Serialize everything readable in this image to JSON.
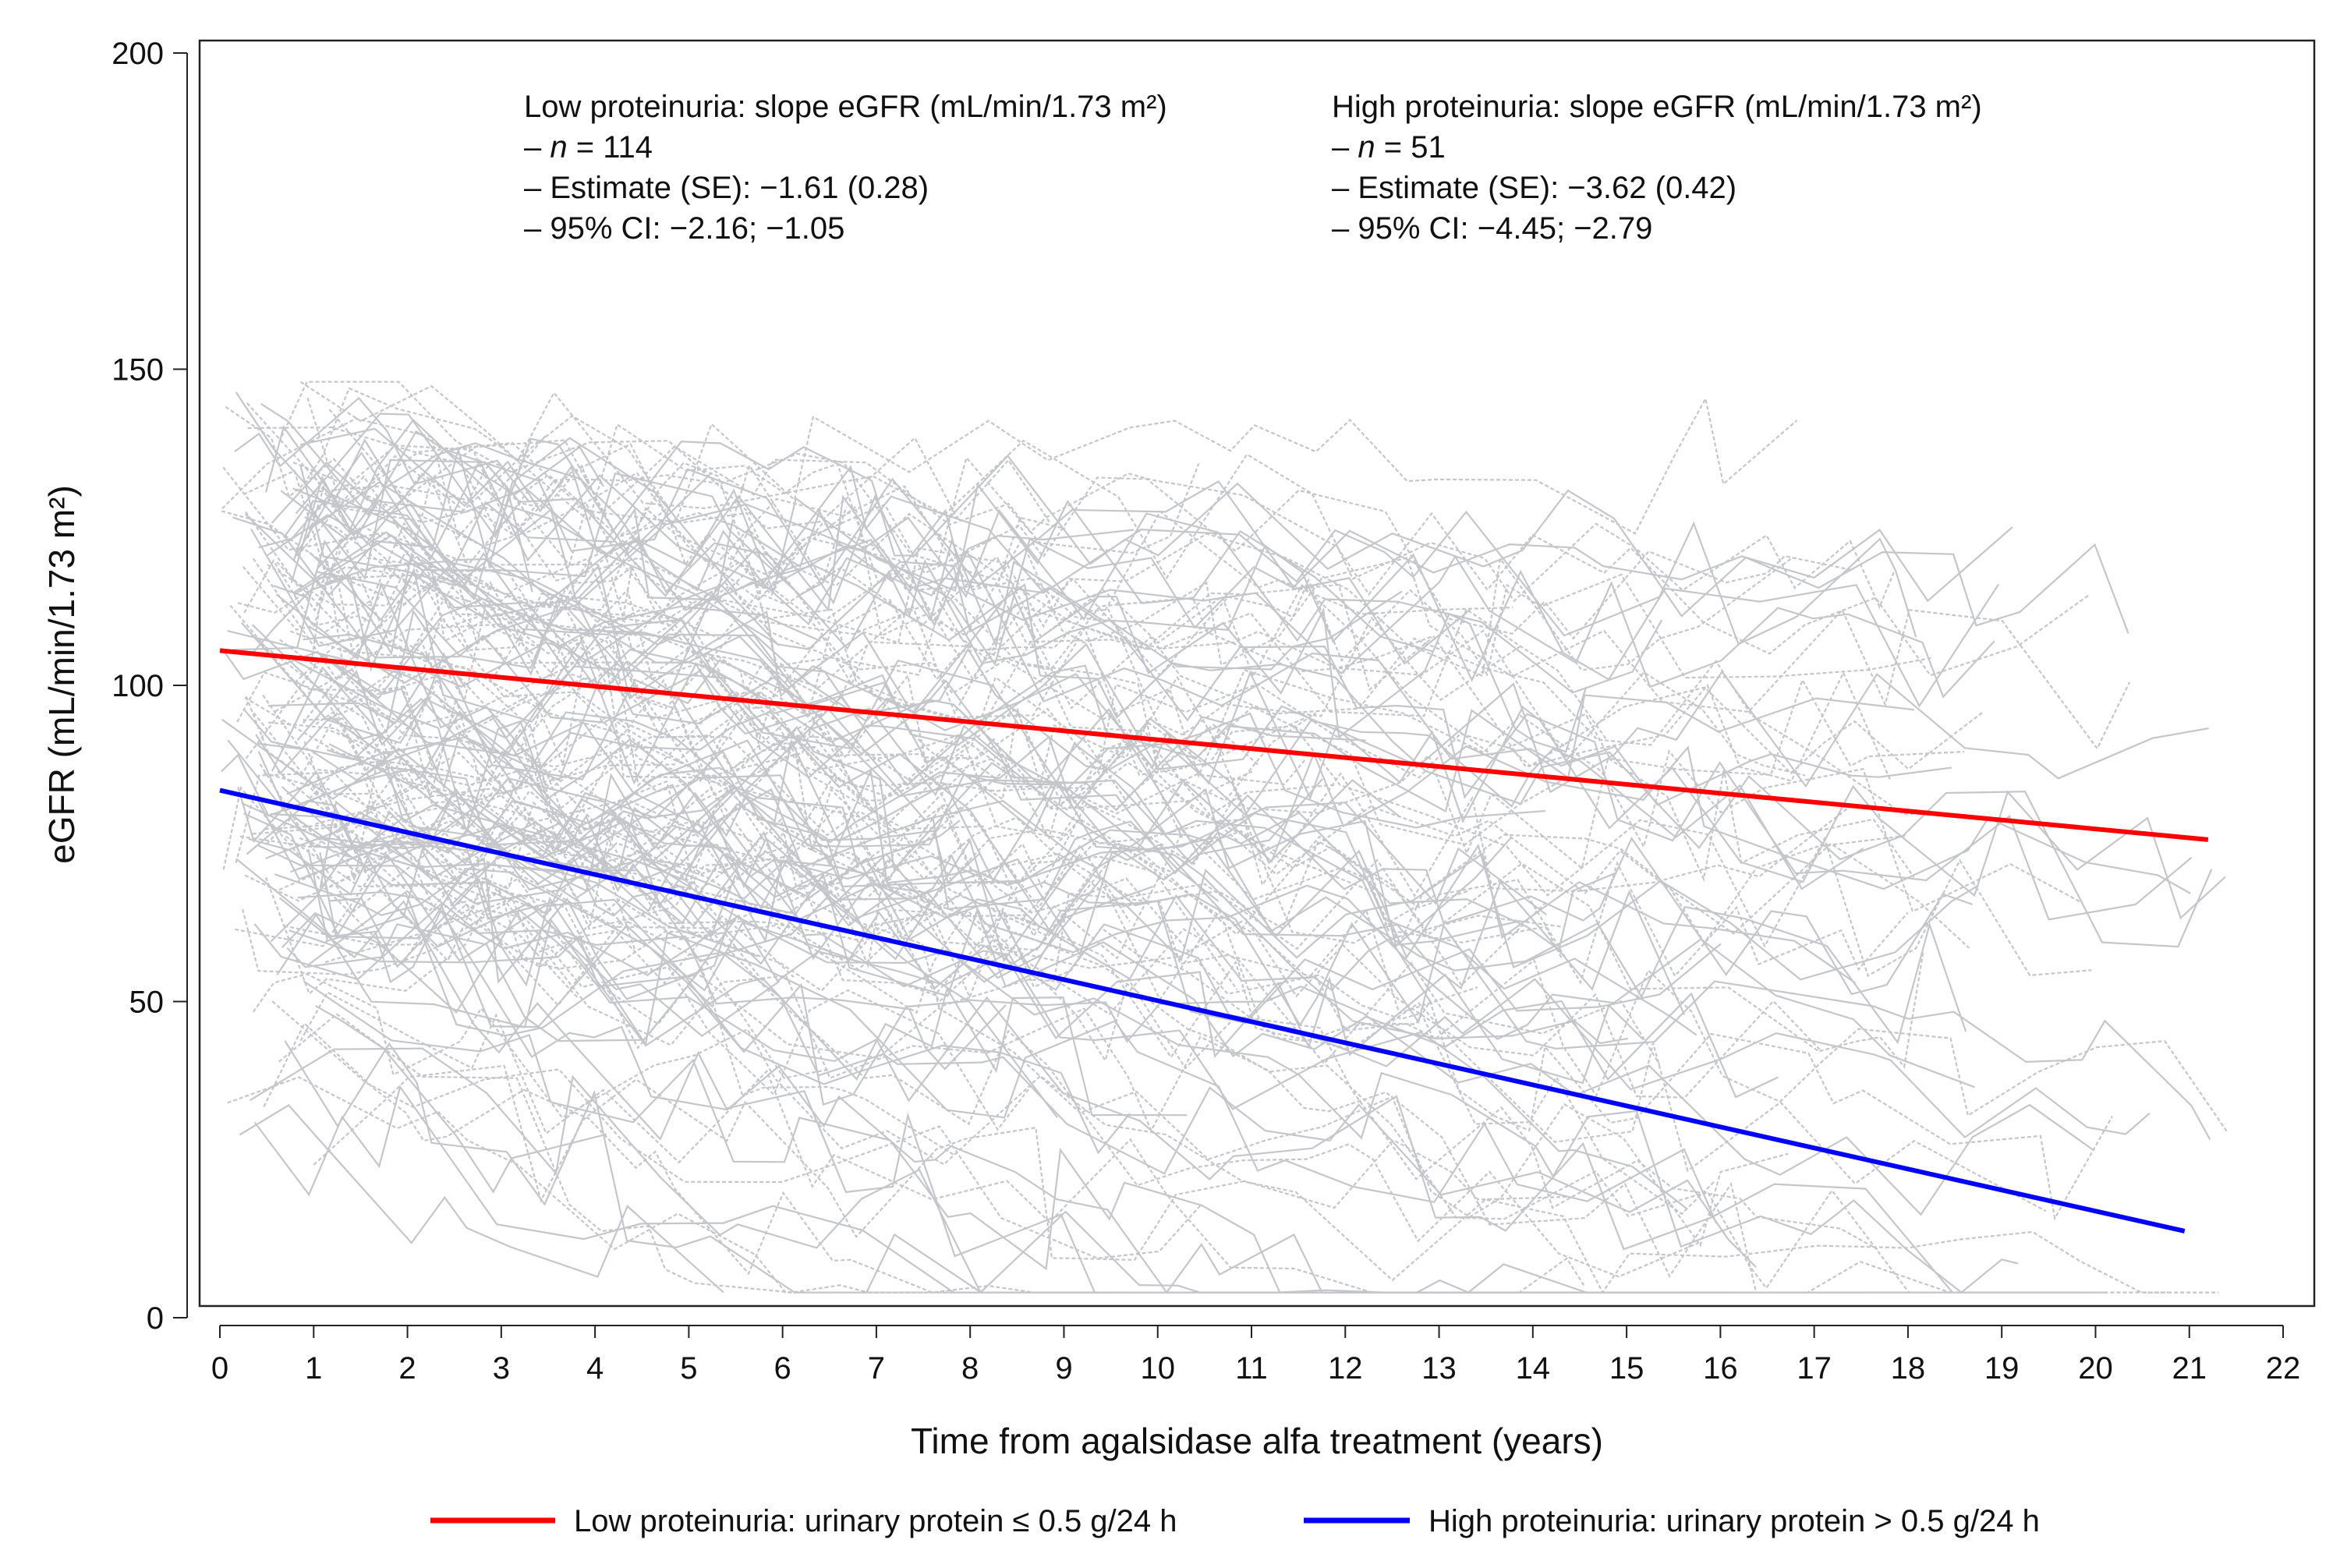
{
  "chart_data": {
    "type": "line",
    "xlabel": "Time from agalsidase alfa treatment (years)",
    "ylabel": "eGFR (mL/min/1.73 m²)",
    "xlim": [
      0,
      22
    ],
    "ylim": [
      0,
      200
    ],
    "x_ticks": [
      "0",
      "1",
      "2",
      "3",
      "4",
      "5",
      "6",
      "7",
      "8",
      "9",
      "10",
      "11",
      "12",
      "13",
      "14",
      "15",
      "16",
      "17",
      "18",
      "19",
      "20",
      "21",
      "22"
    ],
    "y_ticks": [
      "0",
      "50",
      "100",
      "150",
      "200"
    ],
    "series": [
      {
        "name": "Low proteinuria: urinary protein ≤ 0.5 g/24 h",
        "color": "#ff0000",
        "x": [
          0,
          21.2
        ],
        "y": [
          105.5,
          75.6
        ]
      },
      {
        "name": "High proteinuria: urinary protein > 0.5 g/24 h",
        "color": "#0000ff",
        "x": [
          0,
          20.95
        ],
        "y": [
          83.4,
          13.7
        ]
      }
    ],
    "individual_trajectories": {
      "color": "#c4c6c9",
      "count": 165
    },
    "annotations": {
      "low": {
        "title": "Low proteinuria: slope eGFR (mL/min/1.73 m²)",
        "n_prefix": "– ",
        "n_symbol": "n",
        "n_value": " = 114",
        "estimate": "– Estimate (SE): −1.61 (0.28)",
        "ci": "– 95% CI: −2.16; −1.05"
      },
      "high": {
        "title": "High proteinuria: slope eGFR (mL/min/1.73 m²)",
        "n_prefix": "– ",
        "n_symbol": "n",
        "n_value": " = 51",
        "estimate": "– Estimate (SE): −3.62 (0.42)",
        "ci": "– 95% CI: −4.45; −2.79"
      }
    },
    "legend": {
      "position": "bottom",
      "items": [
        {
          "label": "Low proteinuria: urinary protein ≤ 0.5 g/24 h",
          "color": "#ff0000"
        },
        {
          "label": "High proteinuria: urinary protein > 0.5 g/24 h",
          "color": "#0000ff"
        }
      ]
    }
  }
}
